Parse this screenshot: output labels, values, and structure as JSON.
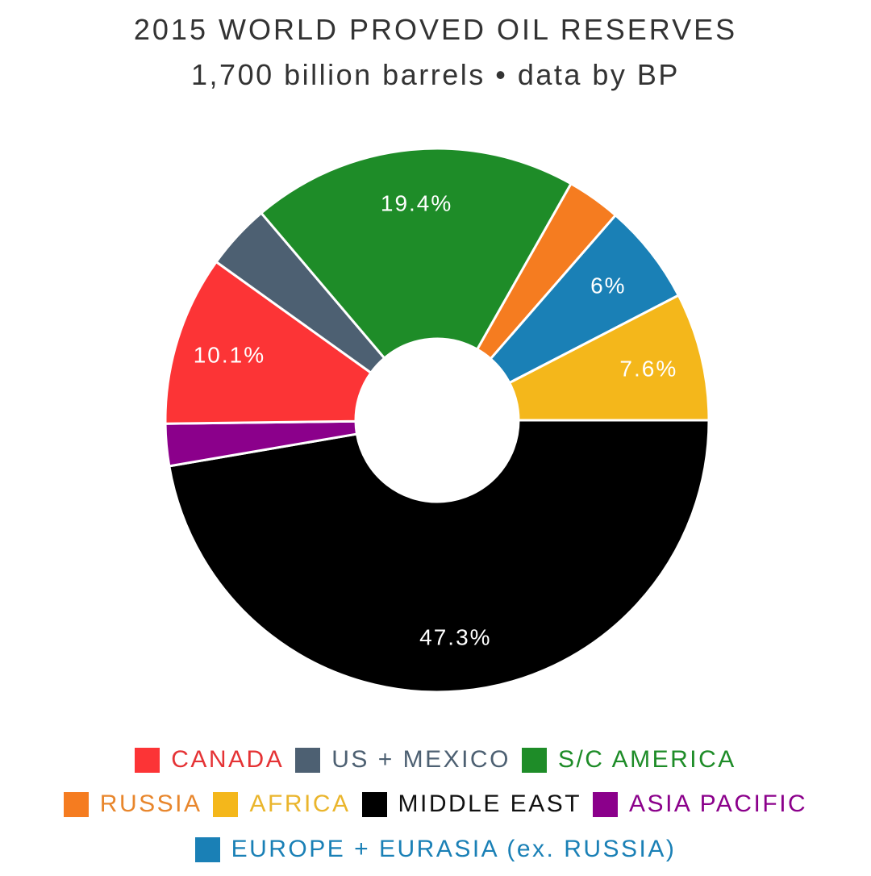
{
  "chart_data": {
    "type": "pie",
    "title": "2015 WORLD PROVED OIL RESERVES",
    "subtitle": "1,700 billion barrels • data by BP",
    "slices": [
      {
        "name": "MIDDLE EAST",
        "value": 47.3,
        "color": "#000000",
        "label": "47.3%"
      },
      {
        "name": "ASIA PACIFIC",
        "value": 2.5,
        "color": "#8b008b",
        "label": ""
      },
      {
        "name": "CANADA",
        "value": 10.1,
        "color": "#fc3436",
        "label": "10.1%"
      },
      {
        "name": "US + MEXICO",
        "value": 3.9,
        "color": "#4d6072",
        "label": ""
      },
      {
        "name": "S/C AMERICA",
        "value": 19.4,
        "color": "#1e8c28",
        "label": "19.4%"
      },
      {
        "name": "RUSSIA",
        "value": 3.2,
        "color": "#f57c20",
        "label": ""
      },
      {
        "name": "EUROPE + EURASIA (ex. RUSSIA)",
        "value": 6.0,
        "color": "#1a80b6",
        "label": "6%"
      },
      {
        "name": "AFRICA",
        "value": 7.6,
        "color": "#f4b71b",
        "label": "7.6%"
      }
    ],
    "legend_rows": [
      [
        {
          "name": "CANADA",
          "color": "#fc3436",
          "text_color": "#e53335"
        },
        {
          "name": "US + MEXICO",
          "color": "#4d6072",
          "text_color": "#4d6072"
        },
        {
          "name": "S/C AMERICA",
          "color": "#1e8c28",
          "text_color": "#1e8c28"
        }
      ],
      [
        {
          "name": "RUSSIA",
          "color": "#f57c20",
          "text_color": "#e8862c"
        },
        {
          "name": "AFRICA",
          "color": "#f4b71b",
          "text_color": "#eab52c"
        },
        {
          "name": "MIDDLE EAST",
          "color": "#000000",
          "text_color": "#111111"
        },
        {
          "name": "ASIA PACIFIC",
          "color": "#8b008b",
          "text_color": "#8b008b"
        }
      ],
      [
        {
          "name": "EUROPE + EURASIA (ex. RUSSIA)",
          "color": "#1a80b6",
          "text_color": "#1a80b6"
        }
      ]
    ],
    "legend_placement": "bottom"
  }
}
